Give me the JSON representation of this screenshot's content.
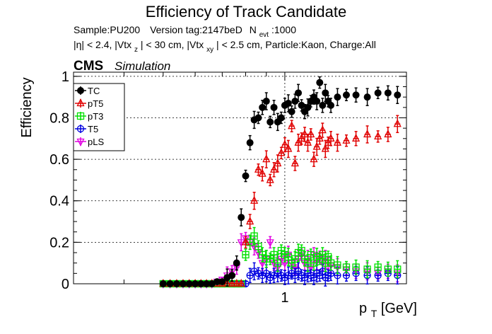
{
  "title": "Efficiency of Track Candidate",
  "meta_line1": {
    "sample": "Sample:PU200",
    "version": "Version tag:2147beD",
    "nevt_prefix": "N",
    "nevt_sub": "evt",
    "nevt_value": ":1000"
  },
  "meta_line2": {
    "eta": "|η| < 2.4, |Vtx",
    "sub_z": "z",
    "vtxz": "| < 30 cm, |Vtx",
    "sub_xy": "xy",
    "rest": "| < 2.5 cm, Particle:Kaon, Charge:All"
  },
  "cms_label": "CMS",
  "sim_label": "Simulation",
  "y_axis_label": "Efficiency",
  "x_axis_label": {
    "main": "p",
    "sub": "T",
    "unit": " [GeV]"
  },
  "colors": {
    "TC": "#000000",
    "pT5": "#e00000",
    "pT3": "#00e000",
    "T5": "#0000e0",
    "pLS": "#e000e0"
  },
  "chart_data": {
    "type": "scatter",
    "x_scale": "log",
    "xlim": [
      0.3,
      2.0
    ],
    "ylim": [
      0,
      1.02
    ],
    "x_tick_labels": [
      {
        "x": 1,
        "label": "1"
      }
    ],
    "y_tick_labels": [
      {
        "y": 0,
        "label": "0"
      },
      {
        "y": 0.2,
        "label": "0.2"
      },
      {
        "y": 0.4,
        "label": "0.4"
      },
      {
        "y": 0.6,
        "label": "0.6"
      },
      {
        "y": 0.8,
        "label": "0.8"
      },
      {
        "y": 1.0,
        "label": "1"
      }
    ],
    "grid": true,
    "legend_position": "top-left",
    "series": [
      {
        "name": "TC",
        "marker": "filled-circle",
        "x": [
          0.5,
          0.52,
          0.54,
          0.56,
          0.58,
          0.6,
          0.62,
          0.64,
          0.66,
          0.68,
          0.7,
          0.72,
          0.74,
          0.76,
          0.78,
          0.8,
          0.82,
          0.84,
          0.86,
          0.88,
          0.9,
          0.92,
          0.94,
          0.96,
          0.98,
          1.0,
          1.02,
          1.04,
          1.06,
          1.08,
          1.1,
          1.12,
          1.14,
          1.16,
          1.18,
          1.2,
          1.22,
          1.24,
          1.26,
          1.28,
          1.3,
          1.35,
          1.42,
          1.5,
          1.6,
          1.7,
          1.8,
          1.9
        ],
        "y": [
          0,
          0,
          0,
          0,
          0,
          0,
          0,
          0,
          0,
          0.01,
          0.01,
          0.03,
          0.04,
          0.1,
          0.32,
          0.52,
          0.68,
          0.79,
          0.8,
          0.85,
          0.88,
          0.78,
          0.85,
          0.78,
          0.8,
          0.86,
          0.87,
          0.83,
          0.88,
          0.92,
          0.86,
          0.83,
          0.85,
          0.88,
          0.9,
          0.88,
          0.97,
          0.86,
          0.92,
          0.88,
          0.86,
          0.9,
          0.91,
          0.91,
          0.9,
          0.92,
          0.92,
          0.91
        ]
      },
      {
        "name": "pT5",
        "marker": "open-triangle",
        "x": [
          0.5,
          0.52,
          0.54,
          0.56,
          0.58,
          0.6,
          0.62,
          0.64,
          0.66,
          0.68,
          0.7,
          0.72,
          0.74,
          0.76,
          0.78,
          0.8,
          0.82,
          0.84,
          0.86,
          0.88,
          0.9,
          0.92,
          0.94,
          0.96,
          0.98,
          1.0,
          1.02,
          1.04,
          1.06,
          1.08,
          1.1,
          1.12,
          1.14,
          1.16,
          1.18,
          1.2,
          1.22,
          1.24,
          1.26,
          1.28,
          1.3,
          1.35,
          1.42,
          1.5,
          1.6,
          1.7,
          1.8,
          1.9
        ],
        "y": [
          0,
          0,
          0,
          0,
          0,
          0,
          0,
          0,
          0,
          0,
          0,
          0,
          0,
          0,
          0,
          0.2,
          0.3,
          0.4,
          0.55,
          0.53,
          0.6,
          0.5,
          0.55,
          0.58,
          0.63,
          0.67,
          0.65,
          0.76,
          0.58,
          0.68,
          0.7,
          0.72,
          0.68,
          0.72,
          0.6,
          0.66,
          0.7,
          0.74,
          0.65,
          0.68,
          0.7,
          0.68,
          0.69,
          0.7,
          0.72,
          0.71,
          0.72,
          0.77
        ]
      },
      {
        "name": "pT3",
        "marker": "open-square",
        "x": [
          0.5,
          0.52,
          0.54,
          0.56,
          0.58,
          0.6,
          0.62,
          0.64,
          0.66,
          0.68,
          0.7,
          0.72,
          0.74,
          0.76,
          0.78,
          0.8,
          0.82,
          0.84,
          0.86,
          0.88,
          0.9,
          0.92,
          0.94,
          0.96,
          0.98,
          1.0,
          1.02,
          1.04,
          1.06,
          1.08,
          1.1,
          1.12,
          1.14,
          1.16,
          1.18,
          1.2,
          1.22,
          1.24,
          1.26,
          1.28,
          1.3,
          1.35,
          1.42,
          1.5,
          1.6,
          1.7,
          1.8,
          1.9
        ],
        "y": [
          0,
          0,
          0,
          0,
          0,
          0,
          0,
          0,
          0,
          0,
          0,
          0,
          0,
          0,
          0,
          0.14,
          0.2,
          0.23,
          0.18,
          0.14,
          0.12,
          0.12,
          0.14,
          0.1,
          0.16,
          0.14,
          0.13,
          0.1,
          0.12,
          0.15,
          0.16,
          0.12,
          0.1,
          0.14,
          0.1,
          0.13,
          0.12,
          0.14,
          0.1,
          0.13,
          0.1,
          0.09,
          0.08,
          0.08,
          0.07,
          0.08,
          0.07,
          0.07
        ]
      },
      {
        "name": "T5",
        "marker": "open-circle",
        "x": [
          0.5,
          0.52,
          0.54,
          0.56,
          0.58,
          0.6,
          0.62,
          0.64,
          0.66,
          0.68,
          0.7,
          0.72,
          0.74,
          0.76,
          0.78,
          0.8,
          0.82,
          0.84,
          0.86,
          0.88,
          0.9,
          0.92,
          0.94,
          0.96,
          0.98,
          1.0,
          1.02,
          1.04,
          1.06,
          1.08,
          1.1,
          1.12,
          1.14,
          1.16,
          1.18,
          1.2,
          1.22,
          1.24,
          1.26,
          1.28,
          1.3,
          1.35,
          1.42,
          1.5,
          1.6,
          1.7,
          1.8,
          1.9
        ],
        "y": [
          0,
          0,
          0,
          0,
          0,
          0,
          0,
          0,
          0,
          0,
          0,
          0,
          0,
          0,
          0,
          0,
          0.04,
          0.06,
          0.05,
          0.04,
          0.05,
          0.03,
          0.04,
          0.05,
          0.04,
          0.03,
          0.04,
          0.05,
          0.04,
          0.06,
          0.04,
          0.03,
          0.05,
          0.04,
          0.03,
          0.05,
          0.04,
          0.06,
          0.03,
          0.04,
          0.05,
          0.04,
          0.04,
          0.05,
          0.04,
          0.04,
          0.05,
          0.04
        ]
      },
      {
        "name": "pLS",
        "marker": "open-triangle-down",
        "x": [
          0.5,
          0.52,
          0.54,
          0.56,
          0.58,
          0.6,
          0.62,
          0.64,
          0.66,
          0.68,
          0.7,
          0.72,
          0.74,
          0.76,
          0.78,
          0.8,
          0.82,
          0.84,
          0.86,
          0.88,
          0.9,
          0.92,
          0.94,
          0.96,
          0.98,
          1.0,
          1.02,
          1.04,
          1.06,
          1.08,
          1.1,
          1.12,
          1.14,
          1.16,
          1.18,
          1.2,
          1.22,
          1.24,
          1.26,
          1.28,
          1.3,
          1.35,
          1.42,
          1.5,
          1.6,
          1.7,
          1.8,
          1.9
        ],
        "y": [
          0,
          0,
          0,
          0,
          0,
          0,
          0,
          0,
          0,
          0.01,
          0.02,
          0.04,
          0.06,
          0.08,
          0.2,
          0.22,
          0.2,
          0.18,
          0.15,
          0.1,
          0.12,
          0.2,
          0.1,
          0.08,
          0.12,
          0.1,
          0.14,
          0.1,
          0.08,
          0.12,
          0.14,
          0.1,
          0.12,
          0.08,
          0.14,
          0.11,
          0.13,
          0.1,
          0.12,
          0.1,
          0.09,
          0.08,
          0.07,
          0.06,
          0.06,
          0.05,
          0.06,
          0.05
        ]
      }
    ]
  }
}
